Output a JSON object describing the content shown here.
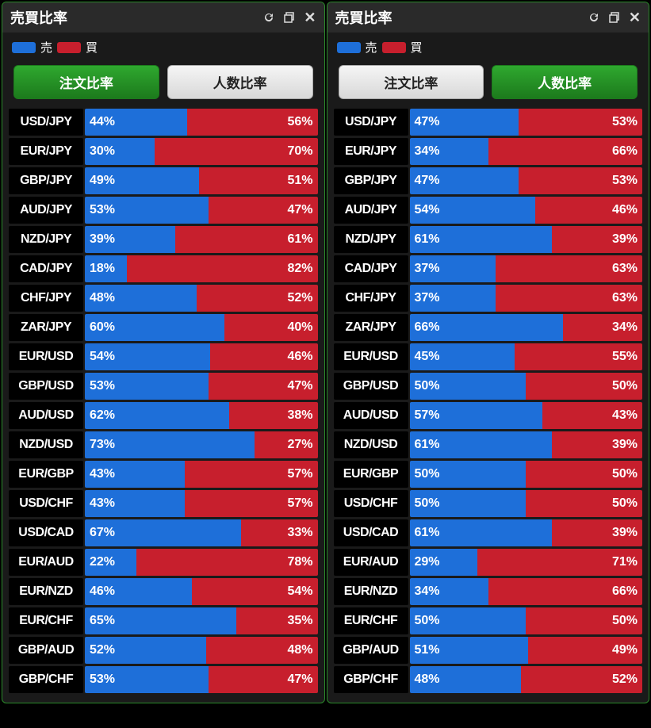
{
  "colors": {
    "sell": "#1e6fd9",
    "buy": "#c71f2d",
    "panel_border": "#2a8a2a",
    "panel_bg": "#1a1a1a",
    "tab_active_bg": "#1c7a1c",
    "tab_inactive_bg": "#e8e8e8"
  },
  "legend": {
    "sell_label": "売",
    "buy_label": "買"
  },
  "panels": [
    {
      "title": "売買比率",
      "tabs": {
        "left": "注文比率",
        "right": "人数比率",
        "active": "left"
      },
      "rows": [
        {
          "pair": "USD/JPY",
          "sell": 44,
          "buy": 56
        },
        {
          "pair": "EUR/JPY",
          "sell": 30,
          "buy": 70
        },
        {
          "pair": "GBP/JPY",
          "sell": 49,
          "buy": 51
        },
        {
          "pair": "AUD/JPY",
          "sell": 53,
          "buy": 47
        },
        {
          "pair": "NZD/JPY",
          "sell": 39,
          "buy": 61
        },
        {
          "pair": "CAD/JPY",
          "sell": 18,
          "buy": 82
        },
        {
          "pair": "CHF/JPY",
          "sell": 48,
          "buy": 52
        },
        {
          "pair": "ZAR/JPY",
          "sell": 60,
          "buy": 40
        },
        {
          "pair": "EUR/USD",
          "sell": 54,
          "buy": 46
        },
        {
          "pair": "GBP/USD",
          "sell": 53,
          "buy": 47
        },
        {
          "pair": "AUD/USD",
          "sell": 62,
          "buy": 38
        },
        {
          "pair": "NZD/USD",
          "sell": 73,
          "buy": 27
        },
        {
          "pair": "EUR/GBP",
          "sell": 43,
          "buy": 57
        },
        {
          "pair": "USD/CHF",
          "sell": 43,
          "buy": 57
        },
        {
          "pair": "USD/CAD",
          "sell": 67,
          "buy": 33
        },
        {
          "pair": "EUR/AUD",
          "sell": 22,
          "buy": 78
        },
        {
          "pair": "EUR/NZD",
          "sell": 46,
          "buy": 54
        },
        {
          "pair": "EUR/CHF",
          "sell": 65,
          "buy": 35
        },
        {
          "pair": "GBP/AUD",
          "sell": 52,
          "buy": 48
        },
        {
          "pair": "GBP/CHF",
          "sell": 53,
          "buy": 47
        }
      ]
    },
    {
      "title": "売買比率",
      "tabs": {
        "left": "注文比率",
        "right": "人数比率",
        "active": "right"
      },
      "rows": [
        {
          "pair": "USD/JPY",
          "sell": 47,
          "buy": 53
        },
        {
          "pair": "EUR/JPY",
          "sell": 34,
          "buy": 66
        },
        {
          "pair": "GBP/JPY",
          "sell": 47,
          "buy": 53
        },
        {
          "pair": "AUD/JPY",
          "sell": 54,
          "buy": 46
        },
        {
          "pair": "NZD/JPY",
          "sell": 61,
          "buy": 39
        },
        {
          "pair": "CAD/JPY",
          "sell": 37,
          "buy": 63
        },
        {
          "pair": "CHF/JPY",
          "sell": 37,
          "buy": 63
        },
        {
          "pair": "ZAR/JPY",
          "sell": 66,
          "buy": 34
        },
        {
          "pair": "EUR/USD",
          "sell": 45,
          "buy": 55
        },
        {
          "pair": "GBP/USD",
          "sell": 50,
          "buy": 50
        },
        {
          "pair": "AUD/USD",
          "sell": 57,
          "buy": 43
        },
        {
          "pair": "NZD/USD",
          "sell": 61,
          "buy": 39
        },
        {
          "pair": "EUR/GBP",
          "sell": 50,
          "buy": 50
        },
        {
          "pair": "USD/CHF",
          "sell": 50,
          "buy": 50
        },
        {
          "pair": "USD/CAD",
          "sell": 61,
          "buy": 39
        },
        {
          "pair": "EUR/AUD",
          "sell": 29,
          "buy": 71
        },
        {
          "pair": "EUR/NZD",
          "sell": 34,
          "buy": 66
        },
        {
          "pair": "EUR/CHF",
          "sell": 50,
          "buy": 50
        },
        {
          "pair": "GBP/AUD",
          "sell": 51,
          "buy": 49
        },
        {
          "pair": "GBP/CHF",
          "sell": 48,
          "buy": 52
        }
      ]
    }
  ]
}
